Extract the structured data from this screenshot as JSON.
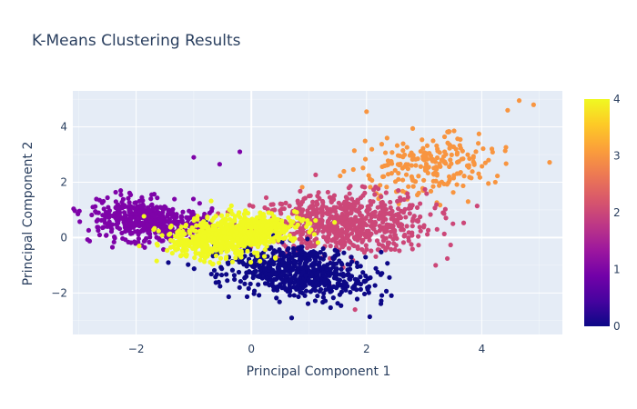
{
  "chart_data": {
    "type": "scatter",
    "title": "K-Means Clustering Results",
    "xlabel": "Principal Component 1",
    "ylabel": "Principal Component 2",
    "xlim": [
      -3.1,
      5.4
    ],
    "ylim": [
      -3.5,
      5.3
    ],
    "xticks": [
      -2,
      0,
      2,
      4
    ],
    "yticks": [
      -2,
      0,
      2,
      4
    ],
    "grid": true,
    "colorbar": {
      "min": 0,
      "max": 4,
      "ticks": [
        0,
        1,
        2,
        3,
        4
      ],
      "colors": [
        "#0d0887",
        "#46039f",
        "#7201a8",
        "#9c179e",
        "#bd3786",
        "#d8576b",
        "#ed7953",
        "#fb9f3a",
        "#fdca26",
        "#f0f921"
      ],
      "placement": "right"
    },
    "clusters": [
      {
        "label": 0,
        "color": "#0d0887",
        "center": [
          0.8,
          -1.2
        ],
        "spread": [
          0.65,
          0.45
        ],
        "rotation": -25,
        "count": 650
      },
      {
        "label": 1,
        "color": "#7e03a8",
        "center": [
          -1.8,
          0.6
        ],
        "spread": [
          0.55,
          0.35
        ],
        "rotation": -20,
        "count": 500
      },
      {
        "label": 2,
        "color": "#cc4778",
        "center": [
          1.6,
          0.5
        ],
        "spread": [
          0.75,
          0.55
        ],
        "rotation": 5,
        "count": 700
      },
      {
        "label": 3,
        "color": "#f89540",
        "center": [
          3.1,
          2.6
        ],
        "spread": [
          0.65,
          0.55
        ],
        "rotation": 35,
        "count": 220
      },
      {
        "label": 4,
        "color": "#f0f921",
        "center": [
          -0.35,
          0.1
        ],
        "spread": [
          0.55,
          0.35
        ],
        "rotation": 25,
        "count": 750
      }
    ],
    "outliers": [
      {
        "label": 3,
        "x": 4.9,
        "y": 4.8
      },
      {
        "label": 3,
        "x": 4.65,
        "y": 4.95
      },
      {
        "label": 3,
        "x": 2.0,
        "y": 4.55
      },
      {
        "label": 3,
        "x": 4.45,
        "y": 4.6
      },
      {
        "label": 2,
        "x": 1.8,
        "y": -2.6
      },
      {
        "label": 0,
        "x": 0.7,
        "y": -2.9
      },
      {
        "label": 2,
        "x": 3.2,
        "y": -1.0
      },
      {
        "label": 2,
        "x": 3.5,
        "y": 0.5
      },
      {
        "label": 1,
        "x": -1.0,
        "y": 2.9
      },
      {
        "label": 1,
        "x": -0.2,
        "y": 3.1
      },
      {
        "label": 1,
        "x": -0.55,
        "y": 2.65
      }
    ]
  }
}
